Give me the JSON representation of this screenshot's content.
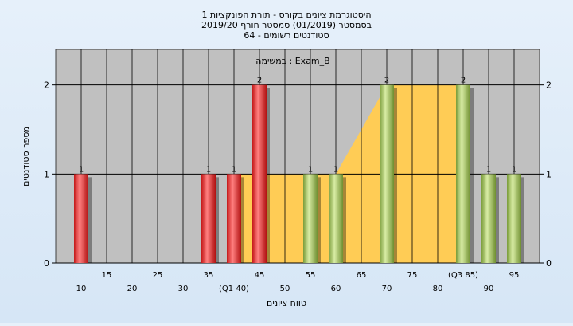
{
  "chart_data": {
    "type": "bar",
    "title_lines": [
      "היסטוגרמת ציונים בקורס - תורת הפונקציות 1",
      "בסמסטר  (01/2019)  סמסטר חורף  2019/20",
      "סטודנטים רשומים - 64"
    ],
    "subtitle": "במשימה : Exam_B",
    "xlabel": "טווח ציונים",
    "ylabel": "מספר סטודנטים",
    "ylim": [
      0,
      2.4
    ],
    "y_ticks": [
      0,
      1,
      2
    ],
    "grid": true,
    "x_tick_labels_row1": [
      {
        "x": 15,
        "label": "15"
      },
      {
        "x": 25,
        "label": "25"
      },
      {
        "x": 35,
        "label": "35"
      },
      {
        "x": 45,
        "label": "45"
      },
      {
        "x": 55,
        "label": "55"
      },
      {
        "x": 65,
        "label": "65"
      },
      {
        "x": 75,
        "label": "75"
      },
      {
        "x": 85,
        "label": "(Q3 85)"
      },
      {
        "x": 95,
        "label": "95"
      }
    ],
    "x_tick_labels_row2": [
      {
        "x": 10,
        "label": "10"
      },
      {
        "x": 20,
        "label": "20"
      },
      {
        "x": 30,
        "label": "30"
      },
      {
        "x": 40,
        "label": "(Q1 40)"
      },
      {
        "x": 50,
        "label": "50"
      },
      {
        "x": 60,
        "label": "60"
      },
      {
        "x": 70,
        "label": "70"
      },
      {
        "x": 80,
        "label": "80"
      },
      {
        "x": 90,
        "label": "90"
      }
    ],
    "bars": [
      {
        "x": 10,
        "value": 1,
        "label": "1",
        "color": "red"
      },
      {
        "x": 35,
        "value": 1,
        "label": "1",
        "color": "red"
      },
      {
        "x": 40,
        "value": 1,
        "label": "1",
        "color": "red"
      },
      {
        "x": 45,
        "value": 2,
        "label": "2",
        "color": "red"
      },
      {
        "x": 55,
        "value": 1,
        "label": "1",
        "color": "green"
      },
      {
        "x": 60,
        "value": 1,
        "label": "1",
        "color": "green"
      },
      {
        "x": 70,
        "value": 2,
        "label": "2",
        "color": "green"
      },
      {
        "x": 85,
        "value": 2,
        "label": "2",
        "color": "green"
      },
      {
        "x": 90,
        "value": 1,
        "label": "1",
        "color": "green"
      },
      {
        "x": 95,
        "value": 1,
        "label": "1",
        "color": "green"
      }
    ],
    "area_points": [
      [
        40,
        1
      ],
      [
        60,
        1
      ],
      [
        70,
        2
      ],
      [
        85,
        2
      ],
      [
        85,
        0
      ],
      [
        40,
        0
      ]
    ],
    "colors": {
      "plot_bg": "#c0c0c0",
      "area": "#ffcc55",
      "red_light": "#ff7070",
      "red_dark": "#c41818",
      "green_light": "#cfe59a",
      "green_dark": "#7a9c3a",
      "grid": "#000000"
    }
  }
}
